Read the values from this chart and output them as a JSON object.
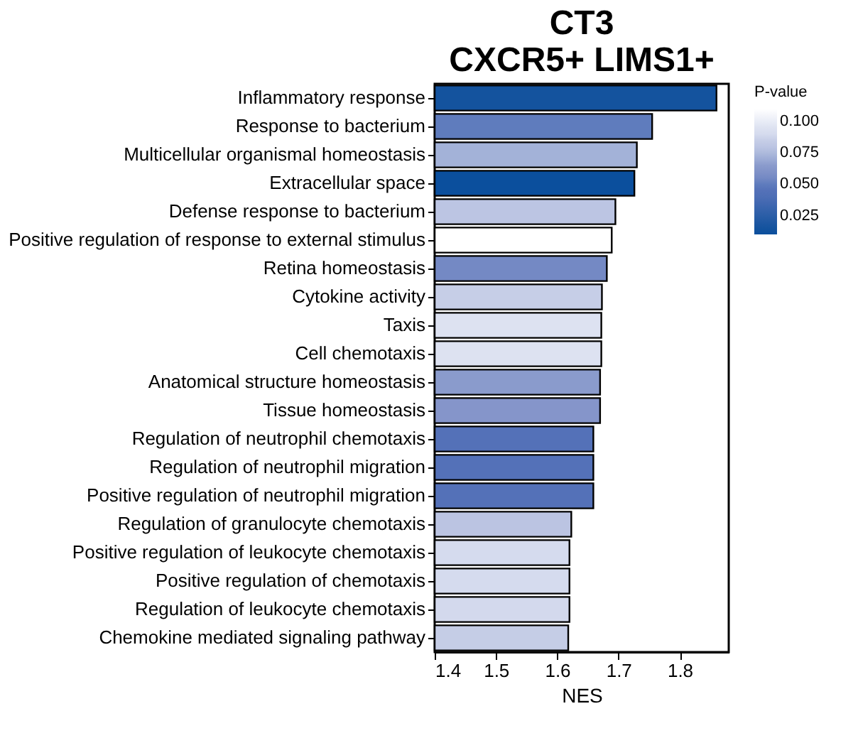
{
  "chart_data": {
    "type": "bar",
    "orientation": "horizontal",
    "title": "CT3",
    "subtitle": "CXCR5+ LIMS1+",
    "xlabel": "NES",
    "legend_title": "P-value",
    "categories": [
      "Inflammatory response",
      "Response to bacterium",
      "Multicellular organismal homeostasis",
      "Extracellular space",
      "Defense response to bacterium",
      "Positive regulation of response to external stimulus",
      "Retina homeostasis",
      "Cytokine activity",
      "Taxis",
      "Cell chemotaxis",
      "Anatomical structure homeostasis",
      "Tissue homeostasis",
      "Regulation of neutrophil chemotaxis",
      "Regulation of neutrophil migration",
      "Positive regulation of neutrophil migration",
      "Regulation of granulocyte chemotaxis",
      "Positive regulation of leukocyte chemotaxis",
      "Positive regulation of chemotaxis",
      "Regulation of leukocyte chemotaxis",
      "Chemokine mediated signaling pathway"
    ],
    "values": [
      1.86,
      1.755,
      1.73,
      1.726,
      1.695,
      1.689,
      1.681,
      1.673,
      1.672,
      1.672,
      1.67,
      1.67,
      1.659,
      1.659,
      1.659,
      1.623,
      1.62,
      1.62,
      1.62,
      1.618
    ],
    "cvalues": [
      0.015,
      0.05,
      0.072,
      0.012,
      0.08,
      0.11,
      0.055,
      0.085,
      0.094,
      0.095,
      0.065,
      0.062,
      0.043,
      0.044,
      0.045,
      0.079,
      0.089,
      0.09,
      0.088,
      0.084
    ],
    "clim": [
      0.01,
      0.112
    ],
    "cticks": [
      0.025,
      {
        "value": 0.05,
        "label": "0.050"
      },
      0.075,
      {
        "value": 0.1,
        "label": "0.100"
      }
    ],
    "colors": [
      "#14539e",
      "#5f7cbd",
      "#a3b2d8",
      "#0b4f9d",
      "#bcc5e3",
      "#ffffff",
      "#7489c4",
      "#c6cee7",
      "#dde2f1",
      "#dde2f1",
      "#8a9bcc",
      "#8595ca",
      "#5471b8",
      "#5471b8",
      "#5471b8",
      "#bbc4e2",
      "#d5dbee",
      "#d5dbee",
      "#d3d9ed",
      "#c5cde6"
    ],
    "xlim": [
      1.4,
      1.88
    ],
    "xticks": [
      1.4,
      1.5,
      1.6,
      1.7,
      1.8
    ],
    "grid": false
  }
}
